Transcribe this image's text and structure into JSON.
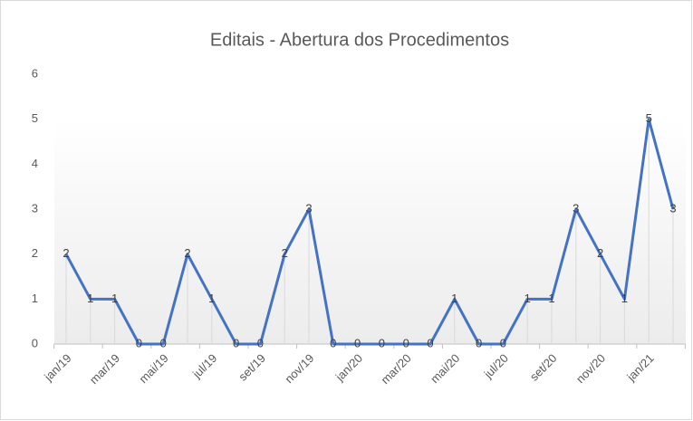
{
  "chart_data": {
    "type": "line",
    "title": "Editais - Abertura dos Procedimentos",
    "categories": [
      "jan/19",
      null,
      "mar/19",
      null,
      "mai/19",
      null,
      "jul/19",
      null,
      "set/19",
      null,
      "nov/19",
      null,
      "jan/20",
      null,
      "mar/20",
      null,
      "mai/20",
      null,
      "jul/20",
      null,
      "set/20",
      null,
      "nov/20",
      null,
      "jan/21",
      null
    ],
    "series": [
      {
        "name": "Editais",
        "color": "#4472c4",
        "values": [
          2,
          1,
          1,
          0,
          0,
          2,
          1,
          0,
          0,
          2,
          3,
          0,
          0,
          0,
          0,
          0,
          1,
          0,
          0,
          1,
          1,
          3,
          2,
          1,
          5,
          3
        ]
      }
    ],
    "ylim": [
      0,
      6
    ],
    "yticks": [
      0,
      1,
      2,
      3,
      4,
      5,
      6
    ],
    "drop_lines": true
  }
}
